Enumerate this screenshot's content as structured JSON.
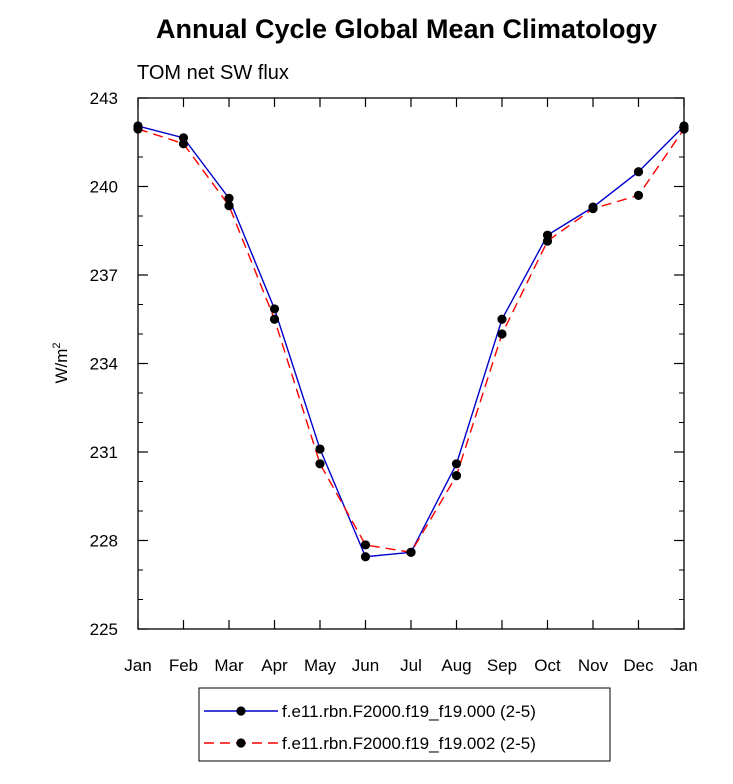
{
  "chart_data": {
    "type": "line",
    "title": "Annual Cycle Global Mean Climatology",
    "subtitle": "TOM net SW flux",
    "ylabel": "W/m",
    "ylabel_superscript": "2",
    "ylim": [
      225,
      243
    ],
    "yticks": [
      "225",
      "228",
      "231",
      "234",
      "237",
      "240",
      "243"
    ],
    "categories": [
      "Jan",
      "Feb",
      "Mar",
      "Apr",
      "May",
      "Jun",
      "Jul",
      "Aug",
      "Sep",
      "Oct",
      "Nov",
      "Dec",
      "Jan"
    ],
    "series": [
      {
        "name": "f.e11.rbn.F2000.f19_f19.000 (2-5)",
        "color": "#0000cc",
        "dash": "solid",
        "values": [
          242.05,
          241.65,
          239.6,
          235.85,
          231.1,
          227.45,
          227.6,
          230.6,
          235.5,
          238.35,
          239.3,
          240.5,
          242.05
        ]
      },
      {
        "name": "f.e11.rbn.F2000.f19_f19.002 (2-5)",
        "color": "#ff0000",
        "dash": "dashed",
        "values": [
          241.95,
          241.45,
          239.35,
          235.5,
          230.6,
          227.85,
          227.6,
          230.2,
          235.0,
          238.15,
          239.25,
          239.7,
          241.95
        ]
      }
    ],
    "grid": false,
    "legend_position": "bottom"
  }
}
